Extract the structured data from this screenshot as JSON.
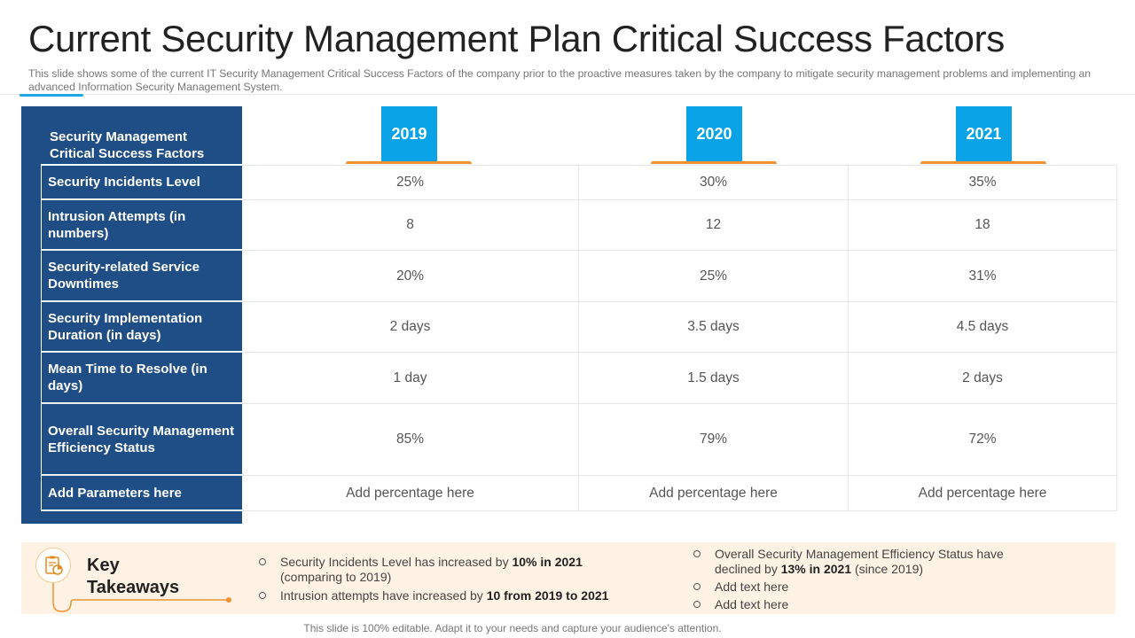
{
  "slide": {
    "title": "Current Security Management Plan Critical Success Factors",
    "subtitle": "This slide shows some of the current IT Security Management Critical Success Factors of the company prior to the proactive measures taken by the company to mitigate security management problems and implementing an advanced Information Security Management System.",
    "footer": "This slide is 100% editable. Adapt it to your needs and capture your audience's attention."
  },
  "table": {
    "header_label": "Security Management Critical Success Factors",
    "years": [
      "2019",
      "2020",
      "2021"
    ],
    "rows": [
      {
        "label": "Security Incidents Level",
        "values": [
          "25%",
          "30%",
          "35%"
        ]
      },
      {
        "label": "Intrusion Attempts (in numbers)",
        "values": [
          "8",
          "12",
          "18"
        ]
      },
      {
        "label": "Security-related Service Downtimes",
        "values": [
          "20%",
          "25%",
          "31%"
        ]
      },
      {
        "label": "Security Implementation Duration (in days)",
        "values": [
          "2 days",
          "3.5 days",
          "4.5 days"
        ]
      },
      {
        "label": "Mean Time to Resolve (in days)",
        "values": [
          "1 day",
          "1.5 days",
          "2 days"
        ]
      },
      {
        "label": "Overall Security Management Efficiency Status",
        "values": [
          "85%",
          "79%",
          "72%"
        ]
      },
      {
        "label": "Add Parameters here",
        "values": [
          "Add percentage here",
          "Add percentage here",
          "Add percentage here"
        ]
      }
    ]
  },
  "takeaways": {
    "title": "Key Takeaways",
    "icon": "clipboard-chart-icon",
    "left": [
      {
        "pre": "Security Incidents Level has increased by ",
        "bold": "10% in 2021",
        "post": " (comparing to 2019)"
      },
      {
        "pre": "Intrusion attempts have increased by ",
        "bold": "10 from 2019 to 2021",
        "post": ""
      }
    ],
    "right": [
      {
        "pre": "Overall Security Management Efficiency Status have declined by ",
        "bold": "13% in 2021",
        "post": " (since 2019)"
      },
      {
        "pre": "Add text here",
        "bold": "",
        "post": ""
      },
      {
        "pre": "Add text here",
        "bold": "",
        "post": ""
      }
    ]
  },
  "colors": {
    "panel": "#1f4e86",
    "year_badge": "#0aa3e8",
    "year_bar": "#f0922e",
    "accent_line": "#1ea7e4",
    "takeaway_bg": "#fdf2e4"
  }
}
